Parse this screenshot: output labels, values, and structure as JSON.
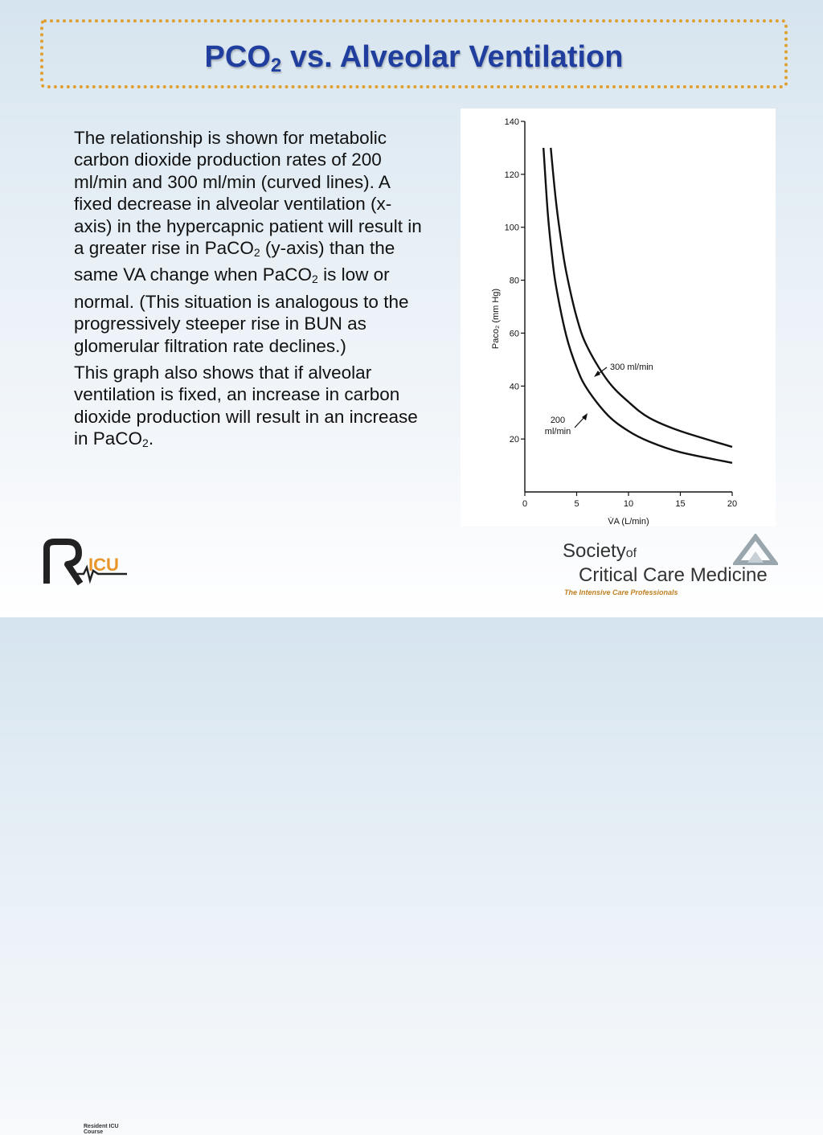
{
  "slide": {
    "title_pre": "PCO",
    "title_sub": "2",
    "title_post": " vs. Alveolar Ventilation"
  },
  "body": {
    "p1_a": "The relationship is shown for metabolic carbon dioxide production rates of 200 ml/min and 300 ml/min (curved lines).  A fixed decrease in alveolar ventilation (x-axis) in the hypercapnic patient will result in a greater rise in PaCO",
    "p1_sub1": "2",
    "p1_b": " (y-axis) than the same VA change when PaCO",
    "p1_sub2": "2",
    "p1_c": " is low or normal.  (This situation is analogous to the progressively steeper rise in BUN as glomerular filtration rate declines.)",
    "p2_a": "This graph also shows that if alveolar ventilation is fixed, an increase in carbon dioxide production will result in an increase in PaCO",
    "p2_sub": "2",
    "p2_b": "."
  },
  "chart_data": {
    "type": "line",
    "xlabel": "V̇A (L/min)",
    "ylabel": "Paco₂ (mm Hg)",
    "xlim": [
      0,
      20
    ],
    "ylim": [
      0,
      140
    ],
    "xticks": [
      0,
      5,
      10,
      15,
      20
    ],
    "yticks": [
      20,
      40,
      60,
      80,
      100,
      120,
      140
    ],
    "grid": false,
    "series": [
      {
        "name": "300 ml/min",
        "label_lines": [
          "300 ml/min"
        ],
        "x": [
          2.5,
          3,
          3.5,
          4,
          5,
          6,
          8,
          10,
          12,
          15,
          20
        ],
        "y": [
          130,
          110,
          95,
          83,
          66,
          55,
          42,
          34,
          28,
          23,
          17
        ]
      },
      {
        "name": "200 ml/min",
        "label_lines": [
          "200",
          "ml/min"
        ],
        "x": [
          1.8,
          2.2,
          2.6,
          3,
          4,
          5,
          6,
          8,
          10,
          12,
          15,
          20
        ],
        "y": [
          130,
          106,
          90,
          78,
          59,
          47,
          39,
          29,
          23,
          19,
          15,
          11
        ]
      }
    ]
  },
  "logos": {
    "ricu_subtitle": "Resident ICU Course",
    "sccm_line1": "Society",
    "sccm_of": "of",
    "sccm_line2": "Critical Care Medicine",
    "sccm_tagline": "The Intensive Care Professionals"
  }
}
